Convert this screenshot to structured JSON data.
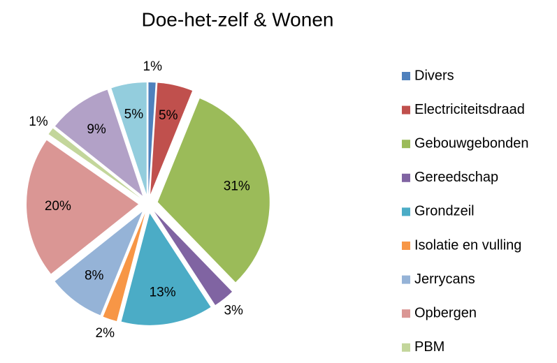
{
  "chart_data": {
    "type": "pie",
    "title": "Doe-het-zelf & Wonen",
    "categories": [
      "Divers",
      "Electriciteitsdraad",
      "Gebouwgebonden",
      "Gereedschap",
      "Grondzeil",
      "Isolatie en vulling",
      "Jerrycans",
      "Opbergen",
      "PBM",
      null,
      null
    ],
    "values": [
      1,
      5,
      31,
      3,
      13,
      2,
      8,
      20,
      1,
      9,
      5
    ],
    "value_labels": [
      "1%",
      "5%",
      "31%",
      "3%",
      "13%",
      "2%",
      "8%",
      "20%",
      "1%",
      "9%",
      "5%"
    ],
    "colors": [
      "#4f81bd",
      "#c0504d",
      "#9bbb59",
      "#8064a2",
      "#4bacc6",
      "#f79646",
      "#95b3d7",
      "#da9694",
      "#c3d69b",
      "#b2a1c7",
      "#93cddd"
    ],
    "legend": "right"
  }
}
